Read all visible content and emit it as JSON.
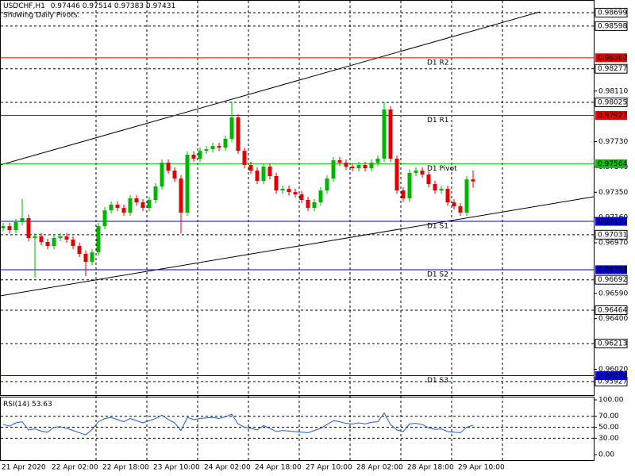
{
  "chart_data": {
    "type": "candlestick",
    "symbol": "USDCHF,H1",
    "subtitle": "Showing Daily Pivots.",
    "bull_color": "#00b400",
    "bear_color": "#e00000",
    "categories": [
      "21 Apr 2020",
      null,
      null,
      null,
      null,
      null,
      null,
      null,
      "22 Apr 02:00",
      null,
      null,
      null,
      null,
      null,
      null,
      null,
      "22 Apr 18:00",
      null,
      null,
      null,
      null,
      null,
      null,
      null,
      "23 Apr 10:00",
      null,
      null,
      null,
      null,
      null,
      null,
      null,
      "24 Apr 02:00",
      null,
      null,
      null,
      null,
      null,
      null,
      null,
      "24 Apr 18:00",
      null,
      null,
      null,
      null,
      null,
      null,
      null,
      "27 Apr 10:00",
      null,
      null,
      null,
      null,
      null,
      null,
      null,
      "28 Apr 02:00",
      null,
      null,
      null,
      null,
      null,
      null,
      null,
      "28 Apr 18:00",
      null,
      null,
      null,
      null,
      null,
      null,
      null,
      "29 Apr 10:00",
      null,
      null
    ],
    "open": [
      0.9708,
      0.97095,
      0.97065,
      0.97125,
      0.97155,
      0.97006,
      0.97018,
      0.96976,
      0.96946,
      0.97006,
      0.97018,
      0.96994,
      0.96946,
      0.96887,
      0.96827,
      0.96898,
      0.97095,
      0.97214,
      0.97256,
      0.97232,
      0.97197,
      0.97304,
      0.97274,
      0.97232,
      0.97292,
      0.97393,
      0.97572,
      0.97512,
      0.97453,
      0.97197,
      0.97632,
      0.97602,
      0.97661,
      0.97673,
      0.97697,
      0.97685,
      0.97751,
      0.97912,
      0.97661,
      0.97554,
      0.97512,
      0.97435,
      0.97542,
      0.97471,
      0.97363,
      0.97375,
      0.97351,
      0.97334,
      0.97292,
      0.97232,
      0.97274,
      0.97363,
      0.97453,
      0.9759,
      0.97572,
      0.97542,
      0.9753,
      0.97554,
      0.9753,
      0.97572,
      0.97602,
      0.97971,
      0.97602,
      0.97363,
      0.97304,
      0.97495,
      0.97512,
      0.97483,
      0.97411,
      0.97363,
      0.97375,
      0.97274,
      0.97244,
      0.97197,
      0.97446
    ],
    "high": [
      0.9712,
      0.9712,
      0.9715,
      0.973,
      0.9718,
      0.97043,
      0.97043,
      0.97001,
      0.97031,
      0.97043,
      0.97043,
      0.97019,
      0.96971,
      0.96912,
      0.96923,
      0.9712,
      0.97239,
      0.97281,
      0.97281,
      0.97257,
      0.97329,
      0.97329,
      0.97299,
      0.97317,
      0.97418,
      0.97597,
      0.97597,
      0.97537,
      0.97478,
      0.97657,
      0.97657,
      0.97686,
      0.97698,
      0.97722,
      0.97722,
      0.97776,
      0.9803,
      0.97937,
      0.97686,
      0.97579,
      0.97537,
      0.97567,
      0.97567,
      0.97496,
      0.974,
      0.974,
      0.97376,
      0.97359,
      0.97317,
      0.97299,
      0.97388,
      0.97478,
      0.97615,
      0.97615,
      0.97597,
      0.97567,
      0.97579,
      0.97579,
      0.97597,
      0.97627,
      0.9803,
      0.97996,
      0.97627,
      0.97388,
      0.9752,
      0.97537,
      0.97537,
      0.97508,
      0.97436,
      0.974,
      0.974,
      0.97299,
      0.97269,
      0.97471,
      0.97514
    ],
    "low": [
      0.97055,
      0.9704,
      0.9704,
      0.971,
      0.96981,
      0.9671,
      0.96951,
      0.96921,
      0.96921,
      0.96981,
      0.96969,
      0.96921,
      0.96862,
      0.9672,
      0.96802,
      0.96873,
      0.9707,
      0.97189,
      0.97207,
      0.97172,
      0.97172,
      0.97249,
      0.97207,
      0.97207,
      0.97267,
      0.97368,
      0.97487,
      0.97428,
      0.9704,
      0.97172,
      0.97577,
      0.97577,
      0.97636,
      0.97648,
      0.9766,
      0.9766,
      0.97726,
      0.97636,
      0.97529,
      0.97487,
      0.9741,
      0.9741,
      0.97446,
      0.97338,
      0.97338,
      0.97326,
      0.97309,
      0.97267,
      0.97207,
      0.97207,
      0.97249,
      0.97338,
      0.97428,
      0.97547,
      0.97517,
      0.97505,
      0.97505,
      0.97505,
      0.97505,
      0.97547,
      0.97577,
      0.97577,
      0.97338,
      0.97279,
      0.97279,
      0.9747,
      0.97458,
      0.97386,
      0.97338,
      0.97338,
      0.97249,
      0.97219,
      0.97172,
      0.97172,
      0.97383
    ],
    "close": [
      0.97095,
      0.97065,
      0.97125,
      0.97155,
      0.97006,
      0.97018,
      0.96976,
      0.96946,
      0.97006,
      0.97018,
      0.96994,
      0.96946,
      0.96887,
      0.96827,
      0.96898,
      0.97095,
      0.97214,
      0.97256,
      0.97232,
      0.97197,
      0.97304,
      0.97274,
      0.97232,
      0.97292,
      0.97393,
      0.97572,
      0.97512,
      0.97453,
      0.97197,
      0.97632,
      0.97602,
      0.97661,
      0.97673,
      0.97697,
      0.97685,
      0.97751,
      0.97912,
      0.97661,
      0.97554,
      0.97512,
      0.97435,
      0.97542,
      0.97471,
      0.97363,
      0.97375,
      0.97351,
      0.97334,
      0.97292,
      0.97232,
      0.97274,
      0.97363,
      0.97453,
      0.9759,
      0.97572,
      0.97542,
      0.9753,
      0.97554,
      0.9753,
      0.97572,
      0.97602,
      0.97971,
      0.97602,
      0.97363,
      0.97304,
      0.97495,
      0.97512,
      0.97483,
      0.97411,
      0.97363,
      0.97375,
      0.97274,
      0.97244,
      0.97197,
      0.97446,
      0.97431
    ],
    "ylim": [
      0.95826,
      0.98794
    ],
    "yticks": [
      {
        "value": 0.9811,
        "label": "0.98110"
      },
      {
        "value": 0.9773,
        "label": "0.97730"
      },
      {
        "value": 0.9754,
        "label": "0.97540"
      },
      {
        "value": 0.9735,
        "label": "0.97350"
      },
      {
        "value": 0.9716,
        "label": "0.97160"
      },
      {
        "value": 0.9697,
        "label": "0.96970"
      },
      {
        "value": 0.9659,
        "label": "0.96590"
      },
      {
        "value": 0.964,
        "label": "0.96400"
      },
      {
        "value": 0.9602,
        "label": "0.96020"
      }
    ],
    "grid_levels": [
      {
        "value": 0.98699,
        "label": "0.98699"
      },
      {
        "value": 0.98598,
        "label": "0.98598"
      },
      {
        "value": 0.98277,
        "label": "0.98277"
      },
      {
        "value": 0.98025,
        "label": "0.98025"
      },
      {
        "value": 0.97031,
        "label": "0.97031"
      },
      {
        "value": 0.96692,
        "label": "0.96692"
      },
      {
        "value": 0.96464,
        "label": "0.96464"
      },
      {
        "value": 0.96213,
        "label": "0.96213"
      },
      {
        "value": 0.95927,
        "label": "0.95927"
      }
    ],
    "pivots": [
      {
        "name": "D1 R2",
        "value": 0.9836,
        "label": "0.98360",
        "color": "#e00000"
      },
      {
        "name": "D1 R1",
        "value": 0.97927,
        "label": "0.97927",
        "color": "#e00000"
      },
      {
        "name": "D1 Pivot",
        "value": 0.97564,
        "label": "0.97564",
        "color": "#00c000"
      },
      {
        "name": "D1 S1",
        "value": 0.97131,
        "label": "0.97131",
        "color": "#0000d0"
      },
      {
        "name": "D1 S2",
        "value": 0.96768,
        "label": "0.96768",
        "color": "#0000d0"
      },
      {
        "name": "D1 S3",
        "value": 0.95972,
        "label": "0.95972",
        "color": "#0000d0"
      }
    ],
    "rsi": {
      "name": "RSI(14)",
      "color": "#1e5adc",
      "values": [
        55,
        52,
        58,
        60,
        45,
        47,
        43,
        41,
        50,
        51,
        48,
        44,
        40,
        36,
        46,
        60,
        66,
        68,
        64,
        60,
        66,
        62,
        58,
        62,
        66,
        72,
        64,
        58,
        44,
        68,
        64,
        66,
        67,
        68,
        66,
        69,
        74,
        56,
        50,
        48,
        45,
        53,
        48,
        42,
        44,
        43,
        42,
        41,
        40,
        44,
        48,
        55,
        62,
        60,
        57,
        56,
        58,
        56,
        59,
        60,
        76,
        55,
        45,
        42,
        56,
        57,
        55,
        49,
        46,
        47,
        42,
        41,
        40,
        50,
        53.63
      ],
      "ylim": [
        -10.1,
        105.8
      ],
      "yticks": [
        {
          "value": 100,
          "label": "100.00"
        },
        {
          "value": 70,
          "label": "70.00"
        },
        {
          "value": 50,
          "label": "50.00"
        },
        {
          "value": 30,
          "label": "30.00"
        },
        {
          "value": 0,
          "label": "0.00"
        }
      ]
    }
  }
}
